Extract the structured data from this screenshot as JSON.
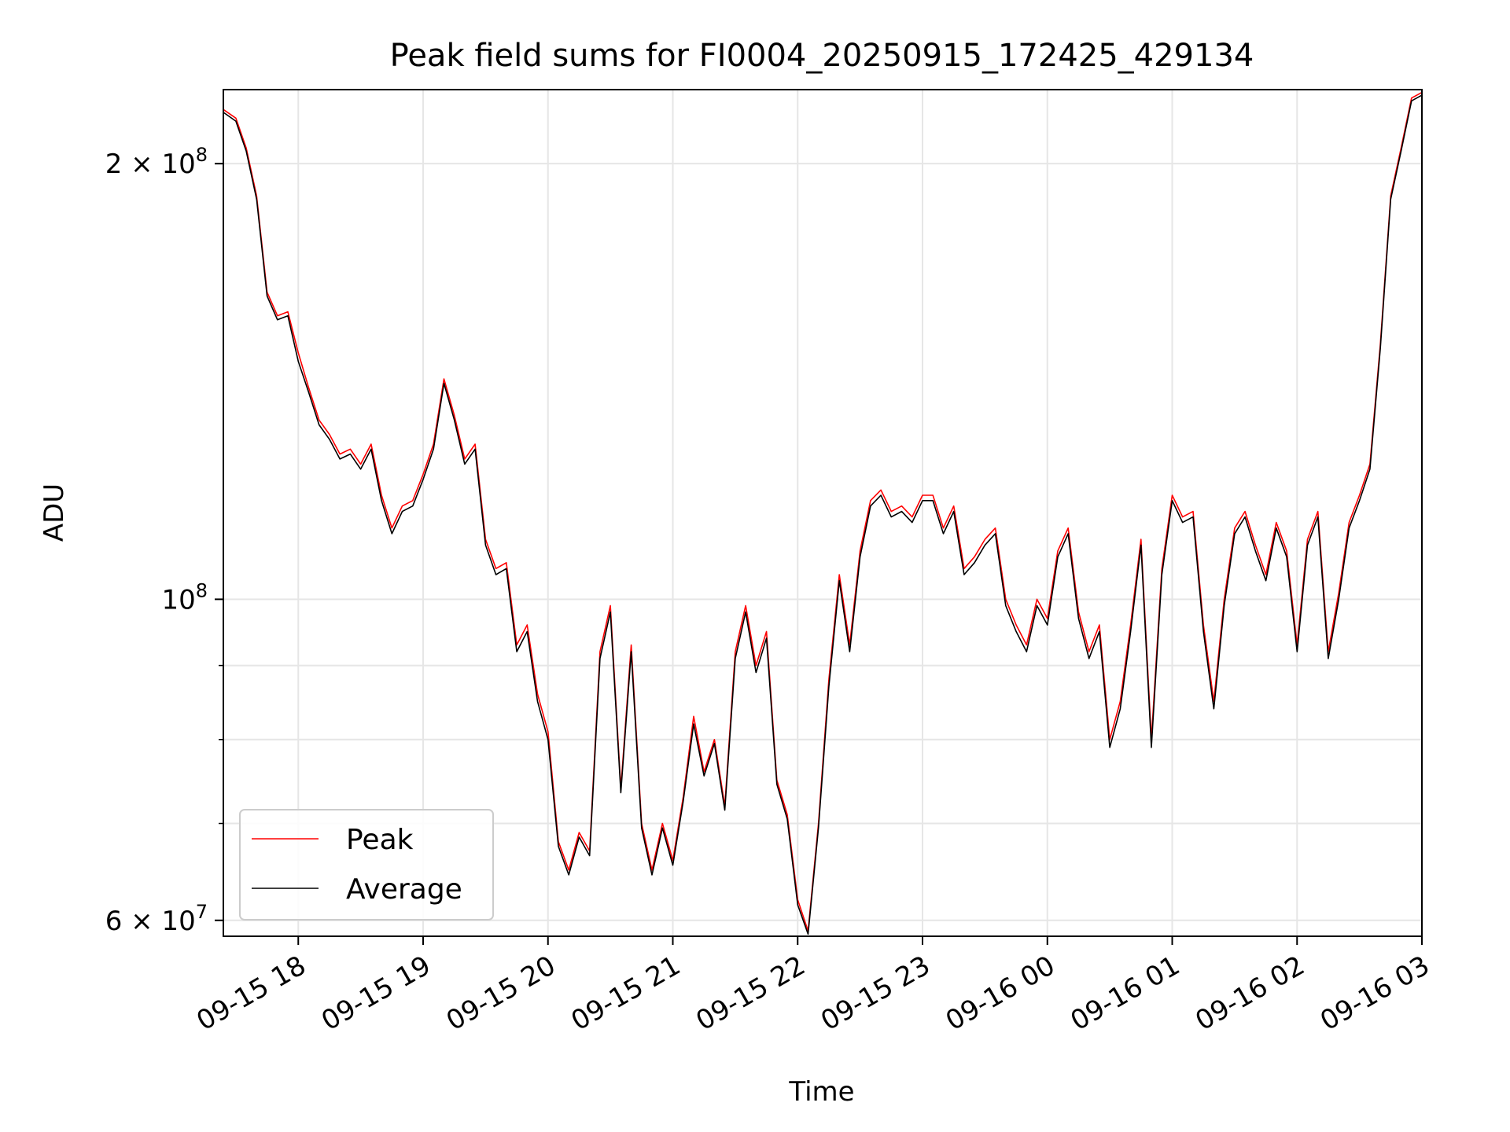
{
  "chart_data": {
    "type": "line",
    "title": "Peak field sums for FI0004_20250915_172425_429134",
    "xlabel": "Time",
    "ylabel": "ADU",
    "yscale": "log",
    "ylim": [
      58500000,
      225000000
    ],
    "xlim": [
      "09-15 17:24",
      "09-16 03:00"
    ],
    "grid": true,
    "legend_position": "lower-left",
    "x_ticks": [
      "09-15 18",
      "09-15 19",
      "09-15 20",
      "09-15 21",
      "09-15 22",
      "09-15 23",
      "09-16 00",
      "09-16 01",
      "09-16 02",
      "09-16 03"
    ],
    "y_major_ticks": [
      {
        "value": 60000000,
        "base": "6 × 10",
        "exp": "7"
      },
      {
        "value": 100000000,
        "base": "10",
        "exp": "8"
      },
      {
        "value": 200000000,
        "base": "2 × 10",
        "exp": "8"
      }
    ],
    "y_minor_ticks": [
      70000000,
      80000000,
      90000000
    ],
    "series": [
      {
        "name": "Peak",
        "color": "#ff0000"
      },
      {
        "name": "Average",
        "color": "#000000"
      }
    ],
    "x": [
      "09-15 17:24",
      "09-15 17:30",
      "09-15 17:35",
      "09-15 17:40",
      "09-15 17:45",
      "09-15 17:50",
      "09-15 17:55",
      "09-15 18:00",
      "09-15 18:05",
      "09-15 18:10",
      "09-15 18:15",
      "09-15 18:20",
      "09-15 18:25",
      "09-15 18:30",
      "09-15 18:35",
      "09-15 18:40",
      "09-15 18:45",
      "09-15 18:50",
      "09-15 18:55",
      "09-15 19:00",
      "09-15 19:05",
      "09-15 19:10",
      "09-15 19:15",
      "09-15 19:20",
      "09-15 19:25",
      "09-15 19:30",
      "09-15 19:35",
      "09-15 19:40",
      "09-15 19:45",
      "09-15 19:50",
      "09-15 19:55",
      "09-15 20:00",
      "09-15 20:05",
      "09-15 20:10",
      "09-15 20:15",
      "09-15 20:20",
      "09-15 20:25",
      "09-15 20:30",
      "09-15 20:35",
      "09-15 20:40",
      "09-15 20:45",
      "09-15 20:50",
      "09-15 20:55",
      "09-15 21:00",
      "09-15 21:05",
      "09-15 21:10",
      "09-15 21:15",
      "09-15 21:20",
      "09-15 21:25",
      "09-15 21:30",
      "09-15 21:35",
      "09-15 21:40",
      "09-15 21:45",
      "09-15 21:50",
      "09-15 21:55",
      "09-15 22:00",
      "09-15 22:05",
      "09-15 22:10",
      "09-15 22:15",
      "09-15 22:20",
      "09-15 22:25",
      "09-15 22:30",
      "09-15 22:35",
      "09-15 22:40",
      "09-15 22:45",
      "09-15 22:50",
      "09-15 22:55",
      "09-15 23:00",
      "09-15 23:05",
      "09-15 23:10",
      "09-15 23:15",
      "09-15 23:20",
      "09-15 23:25",
      "09-15 23:30",
      "09-15 23:35",
      "09-15 23:40",
      "09-15 23:45",
      "09-15 23:50",
      "09-15 23:55",
      "09-16 00:00",
      "09-16 00:05",
      "09-16 00:10",
      "09-16 00:15",
      "09-16 00:20",
      "09-16 00:25",
      "09-16 00:30",
      "09-16 00:35",
      "09-16 00:40",
      "09-16 00:45",
      "09-16 00:50",
      "09-16 00:55",
      "09-16 01:00",
      "09-16 01:05",
      "09-16 01:10",
      "09-16 01:15",
      "09-16 01:20",
      "09-16 01:25",
      "09-16 01:30",
      "09-16 01:35",
      "09-16 01:40",
      "09-16 01:45",
      "09-16 01:50",
      "09-16 01:55",
      "09-16 02:00",
      "09-16 02:05",
      "09-16 02:10",
      "09-16 02:15",
      "09-16 02:20",
      "09-16 02:25",
      "09-16 02:30",
      "09-16 02:35",
      "09-16 02:40",
      "09-16 02:45",
      "09-16 02:50",
      "09-16 02:55",
      "09-16 03:00"
    ],
    "peak_values": [
      218000000,
      215000000,
      205000000,
      190000000,
      163000000,
      157000000,
      158000000,
      148000000,
      140000000,
      133000000,
      130000000,
      126000000,
      127000000,
      124000000,
      128000000,
      118000000,
      112000000,
      116000000,
      117000000,
      122000000,
      128000000,
      142000000,
      134000000,
      125000000,
      128000000,
      110000000,
      105000000,
      106000000,
      93000000,
      96000000,
      86000000,
      81000000,
      68000000,
      65000000,
      69000000,
      67000000,
      92000000,
      99000000,
      74000000,
      93000000,
      70000000,
      65000000,
      70000000,
      66000000,
      73000000,
      83000000,
      76000000,
      80000000,
      72000000,
      92000000,
      99000000,
      90000000,
      95000000,
      75000000,
      71000000,
      62000000,
      59000000,
      70000000,
      88000000,
      104000000,
      93000000,
      108000000,
      117000000,
      119000000,
      115000000,
      116000000,
      114000000,
      118000000,
      118000000,
      112000000,
      116000000,
      105000000,
      107000000,
      110000000,
      112000000,
      100000000,
      96000000,
      93000000,
      100000000,
      97000000,
      108000000,
      112000000,
      98000000,
      92000000,
      96000000,
      80000000,
      85000000,
      96000000,
      110000000,
      80000000,
      105000000,
      118000000,
      114000000,
      115000000,
      96000000,
      85000000,
      100000000,
      112000000,
      115000000,
      109000000,
      104000000,
      113000000,
      108000000,
      93000000,
      110000000,
      115000000,
      92000000,
      101000000,
      113000000,
      118000000,
      124000000,
      150000000,
      190000000,
      205000000,
      222000000,
      224000000
    ],
    "average_values": [
      217000000,
      214000000,
      204000000,
      189000000,
      162000000,
      156000000,
      157000000,
      146000000,
      139000000,
      132000000,
      129000000,
      125000000,
      126000000,
      123000000,
      127000000,
      117000000,
      111000000,
      115000000,
      116000000,
      121000000,
      127000000,
      141000000,
      133000000,
      124000000,
      127000000,
      109000000,
      104000000,
      105000000,
      92000000,
      95000000,
      85000000,
      80000000,
      67500000,
      64500000,
      68500000,
      66500000,
      91000000,
      98000000,
      73500000,
      92000000,
      69500000,
      64500000,
      69500000,
      65500000,
      72500000,
      82000000,
      75500000,
      79500000,
      71500000,
      91000000,
      98000000,
      89000000,
      94000000,
      74500000,
      70500000,
      61500000,
      58700000,
      69500000,
      87000000,
      103000000,
      92000000,
      107000000,
      116000000,
      118000000,
      114000000,
      115000000,
      113000000,
      117000000,
      117000000,
      111000000,
      115000000,
      104000000,
      106000000,
      109000000,
      111000000,
      99000000,
      95000000,
      92000000,
      99000000,
      96000000,
      107000000,
      111000000,
      97000000,
      91000000,
      95000000,
      79000000,
      84000000,
      95000000,
      109000000,
      79000000,
      104000000,
      117000000,
      113000000,
      114000000,
      95000000,
      84000000,
      99000000,
      111000000,
      114000000,
      108000000,
      103000000,
      112000000,
      107000000,
      92000000,
      109000000,
      114000000,
      91000000,
      100000000,
      112000000,
      117000000,
      123000000,
      149000000,
      189000000,
      204000000,
      221000000,
      223000000
    ]
  }
}
